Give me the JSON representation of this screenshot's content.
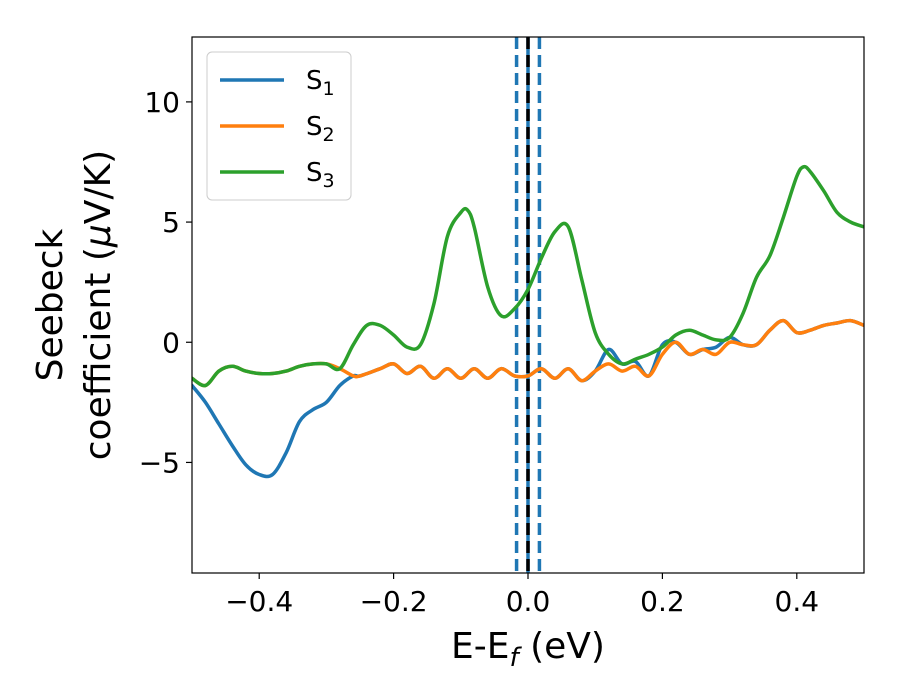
{
  "chart_data": {
    "type": "line",
    "xlabel_main": "E-E",
    "xlabel_sub": "f",
    "xlabel_unit": " (eV)",
    "ylabel_line1": "Seebeck",
    "ylabel_line2_pre": "coefficient  (",
    "ylabel_line2_mu": "μ",
    "ylabel_line2_post": "V/K)",
    "xlim": [
      -0.5,
      0.5
    ],
    "ylim": [
      -9.6,
      12.7
    ],
    "xticks": [
      -0.4,
      -0.2,
      0.0,
      0.2,
      0.4
    ],
    "xtick_labels": [
      "−0.4",
      "−0.2",
      "0.0",
      "0.2",
      "0.4"
    ],
    "yticks": [
      -5,
      0,
      5,
      10
    ],
    "ytick_labels": [
      "−5",
      "0",
      "5",
      "10"
    ],
    "grid": false,
    "legend_position": "top-left",
    "series": [
      {
        "name": "S",
        "name_sub": "1",
        "color": "#1f77b4",
        "x": [
          -0.5,
          -0.48,
          -0.46,
          -0.44,
          -0.42,
          -0.4,
          -0.38,
          -0.36,
          -0.34,
          -0.32,
          -0.3,
          -0.28,
          -0.26,
          -0.25,
          -0.22,
          -0.2,
          -0.18,
          -0.16,
          -0.14,
          -0.12,
          -0.1,
          -0.08,
          -0.06,
          -0.04,
          -0.02,
          0.0,
          0.02,
          0.04,
          0.06,
          0.08,
          0.1,
          0.12,
          0.14,
          0.16,
          0.18,
          0.2,
          0.22,
          0.24,
          0.26,
          0.28,
          0.3,
          0.32,
          0.34,
          0.36,
          0.38,
          0.4,
          0.42,
          0.44,
          0.46,
          0.48,
          0.5
        ],
        "y": [
          -1.8,
          -2.5,
          -3.4,
          -4.3,
          -5.1,
          -5.5,
          -5.5,
          -4.6,
          -3.3,
          -2.8,
          -2.5,
          -1.8,
          -1.4,
          -1.4,
          -1.1,
          -0.9,
          -1.3,
          -1.0,
          -1.5,
          -1.1,
          -1.5,
          -1.1,
          -1.5,
          -1.1,
          -1.4,
          -1.4,
          -1.1,
          -1.5,
          -1.1,
          -1.6,
          -1.2,
          -0.3,
          -0.9,
          -0.8,
          -1.4,
          -0.1,
          0.0,
          -0.5,
          -0.3,
          -0.2,
          0.2,
          -0.1,
          -0.1,
          0.5,
          0.9,
          0.4,
          0.5,
          0.7,
          0.8,
          0.9,
          0.7
        ]
      },
      {
        "name": "S",
        "name_sub": "2",
        "color": "#ff7f0e",
        "x": [
          -0.5,
          -0.48,
          -0.46,
          -0.44,
          -0.42,
          -0.4,
          -0.38,
          -0.36,
          -0.34,
          -0.32,
          -0.3,
          -0.28,
          -0.26,
          -0.25,
          -0.22,
          -0.2,
          -0.18,
          -0.16,
          -0.14,
          -0.12,
          -0.1,
          -0.08,
          -0.06,
          -0.04,
          -0.02,
          0.0,
          0.02,
          0.04,
          0.06,
          0.08,
          0.1,
          0.12,
          0.14,
          0.16,
          0.18,
          0.2,
          0.22,
          0.24,
          0.26,
          0.28,
          0.3,
          0.32,
          0.34,
          0.36,
          0.38,
          0.4,
          0.42,
          0.44,
          0.46,
          0.48,
          0.5
        ],
        "y": [
          -1.5,
          -1.8,
          -1.2,
          -1.0,
          -1.2,
          -1.3,
          -1.3,
          -1.2,
          -1.0,
          -0.9,
          -0.9,
          -1.1,
          -1.4,
          -1.4,
          -1.1,
          -0.9,
          -1.3,
          -1.0,
          -1.5,
          -1.1,
          -1.5,
          -1.1,
          -1.5,
          -1.1,
          -1.4,
          -1.4,
          -1.1,
          -1.5,
          -1.1,
          -1.6,
          -1.2,
          -0.9,
          -1.2,
          -1.0,
          -1.4,
          -0.5,
          0.0,
          -0.5,
          -0.3,
          -0.5,
          0.0,
          -0.1,
          -0.1,
          0.5,
          0.9,
          0.4,
          0.5,
          0.7,
          0.8,
          0.9,
          0.7
        ]
      },
      {
        "name": "S",
        "name_sub": "3",
        "color": "#2ca02c",
        "x": [
          -0.5,
          -0.48,
          -0.46,
          -0.44,
          -0.42,
          -0.4,
          -0.38,
          -0.36,
          -0.34,
          -0.32,
          -0.3,
          -0.28,
          -0.26,
          -0.24,
          -0.22,
          -0.2,
          -0.18,
          -0.16,
          -0.14,
          -0.12,
          -0.1,
          -0.09,
          -0.08,
          -0.06,
          -0.04,
          -0.02,
          0.0,
          0.02,
          0.04,
          0.06,
          0.08,
          0.1,
          0.12,
          0.14,
          0.16,
          0.18,
          0.2,
          0.22,
          0.24,
          0.26,
          0.28,
          0.3,
          0.32,
          0.34,
          0.36,
          0.38,
          0.4,
          0.41,
          0.42,
          0.44,
          0.46,
          0.48,
          0.5
        ],
        "y": [
          -1.5,
          -1.8,
          -1.2,
          -1.0,
          -1.2,
          -1.3,
          -1.3,
          -1.2,
          -1.0,
          -0.9,
          -0.9,
          -1.1,
          -0.1,
          0.7,
          0.7,
          0.3,
          -0.2,
          -0.1,
          1.6,
          4.4,
          5.4,
          5.5,
          4.8,
          2.3,
          1.1,
          1.4,
          2.2,
          3.5,
          4.6,
          4.8,
          2.6,
          0.4,
          -0.5,
          -0.9,
          -0.7,
          -0.5,
          -0.2,
          0.3,
          0.5,
          0.3,
          0.1,
          0.2,
          1.2,
          2.7,
          3.6,
          5.2,
          6.9,
          7.3,
          7.1,
          6.3,
          5.4,
          5.0,
          4.8
        ]
      }
    ],
    "vertical_lines": [
      {
        "x": -0.017,
        "color": "#1f77b4",
        "style": "dashed"
      },
      {
        "x": 0.0,
        "color": "#1f77b4",
        "style": "solid"
      },
      {
        "x": 0.0,
        "color": "#000000",
        "style": "dashed"
      },
      {
        "x": 0.017,
        "color": "#1f77b4",
        "style": "dashed"
      }
    ]
  }
}
